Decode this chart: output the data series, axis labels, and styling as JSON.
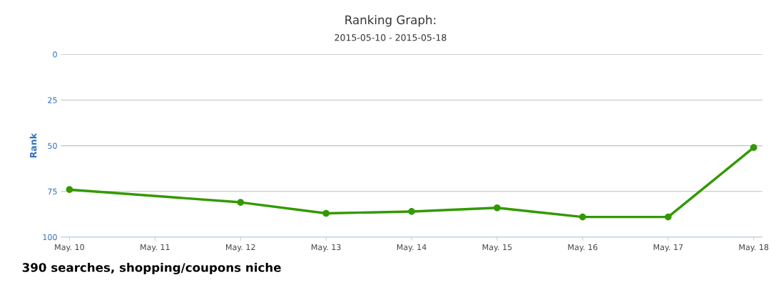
{
  "chart_data": {
    "type": "line",
    "title": "Ranking Graph:",
    "subtitle": "2015-05-10 - 2015-05-18",
    "ylabel": "Rank",
    "categories": [
      "May. 10",
      "May. 11",
      "May. 12",
      "May. 13",
      "May. 14",
      "May. 15",
      "May. 16",
      "May. 17",
      "May. 18"
    ],
    "series": [
      {
        "color": "#339900",
        "values": [
          74,
          null,
          81,
          87,
          86,
          84,
          89,
          89,
          51
        ]
      }
    ],
    "ylim": [
      100,
      0
    ],
    "yticks": [
      0,
      25,
      50,
      75,
      100
    ],
    "grid": "y",
    "marker": "circle",
    "line_style": "solid",
    "annotations": [
      "390 searches, shopping/coupons niche"
    ]
  }
}
